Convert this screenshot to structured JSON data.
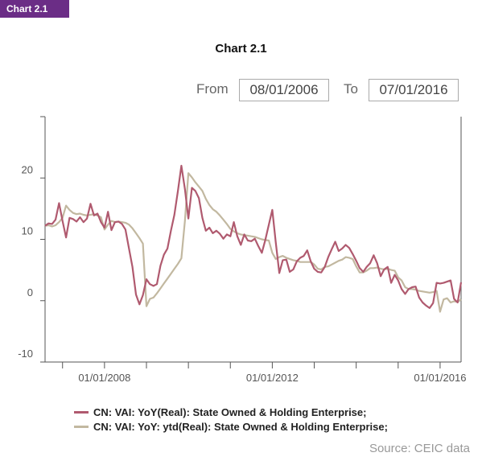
{
  "badge": "Chart 2.1",
  "range": {
    "from_label": "From",
    "from_value": "08/01/2006",
    "to_label": "To",
    "to_value": "07/01/2016"
  },
  "source": "Source: CEIC data",
  "chart_data": {
    "type": "line",
    "title": "Chart 2.1",
    "xlabel": "",
    "ylabel": "",
    "xlim": [
      "2006-08",
      "2016-07"
    ],
    "ylim": [
      -10,
      30
    ],
    "yticks": [
      -10,
      0,
      10,
      20
    ],
    "xticks": [
      "01/01/2008",
      "01/01/2012",
      "01/01/2016"
    ],
    "legend_position": "bottom",
    "grid": false,
    "series": [
      {
        "name": "CN: VAI: YoY(Real): State Owned & Holding Enterprise;",
        "color": "#b05a6f",
        "points": [
          [
            "2006-08",
            12.2
          ],
          [
            "2006-09",
            12.6
          ],
          [
            "2006-10",
            12.5
          ],
          [
            "2006-11",
            13.2
          ],
          [
            "2006-12",
            15.9
          ],
          [
            "2007-01",
            13.0
          ],
          [
            "2007-02",
            10.3
          ],
          [
            "2007-03",
            13.5
          ],
          [
            "2007-04",
            13.3
          ],
          [
            "2007-05",
            12.9
          ],
          [
            "2007-06",
            13.6
          ],
          [
            "2007-07",
            12.8
          ],
          [
            "2007-08",
            13.4
          ],
          [
            "2007-09",
            15.8
          ],
          [
            "2007-10",
            13.9
          ],
          [
            "2007-11",
            14.2
          ],
          [
            "2007-12",
            12.8
          ],
          [
            "2008-01",
            11.9
          ],
          [
            "2008-02",
            14.5
          ],
          [
            "2008-03",
            11.5
          ],
          [
            "2008-04",
            12.8
          ],
          [
            "2008-05",
            12.9
          ],
          [
            "2008-06",
            12.5
          ],
          [
            "2008-07",
            11.6
          ],
          [
            "2008-08",
            8.5
          ],
          [
            "2008-09",
            5.5
          ],
          [
            "2008-10",
            1.0
          ],
          [
            "2008-11",
            -0.6
          ],
          [
            "2008-12",
            0.9
          ],
          [
            "2009-01",
            3.5
          ],
          [
            "2009-02",
            2.7
          ],
          [
            "2009-03",
            2.4
          ],
          [
            "2009-04",
            2.7
          ],
          [
            "2009-05",
            5.7
          ],
          [
            "2009-06",
            7.5
          ],
          [
            "2009-07",
            8.5
          ],
          [
            "2009-08",
            11.4
          ],
          [
            "2009-09",
            14.0
          ],
          [
            "2009-10",
            17.9
          ],
          [
            "2009-11",
            22.0
          ],
          [
            "2009-12",
            18.2
          ],
          [
            "2010-01",
            13.4
          ],
          [
            "2010-02",
            18.4
          ],
          [
            "2010-03",
            17.9
          ],
          [
            "2010-04",
            16.7
          ],
          [
            "2010-05",
            13.5
          ],
          [
            "2010-06",
            11.4
          ],
          [
            "2010-07",
            11.9
          ],
          [
            "2010-08",
            11.0
          ],
          [
            "2010-09",
            11.4
          ],
          [
            "2010-10",
            10.9
          ],
          [
            "2010-11",
            10.1
          ],
          [
            "2010-12",
            10.8
          ],
          [
            "2011-01",
            10.5
          ],
          [
            "2011-02",
            12.8
          ],
          [
            "2011-03",
            10.5
          ],
          [
            "2011-04",
            9.1
          ],
          [
            "2011-05",
            10.8
          ],
          [
            "2011-06",
            9.8
          ],
          [
            "2011-07",
            9.7
          ],
          [
            "2011-08",
            10.1
          ],
          [
            "2011-09",
            8.9
          ],
          [
            "2011-10",
            7.8
          ],
          [
            "2011-11",
            9.9
          ],
          [
            "2011-12",
            12.4
          ],
          [
            "2012-01",
            14.8
          ],
          [
            "2012-02",
            9.5
          ],
          [
            "2012-03",
            4.5
          ],
          [
            "2012-04",
            6.6
          ],
          [
            "2012-05",
            6.7
          ],
          [
            "2012-06",
            4.7
          ],
          [
            "2012-07",
            5.1
          ],
          [
            "2012-08",
            6.4
          ],
          [
            "2012-09",
            7.0
          ],
          [
            "2012-10",
            7.3
          ],
          [
            "2012-11",
            8.2
          ],
          [
            "2012-12",
            6.4
          ],
          [
            "2013-01",
            5.2
          ],
          [
            "2013-02",
            4.7
          ],
          [
            "2013-03",
            4.6
          ],
          [
            "2013-04",
            5.5
          ],
          [
            "2013-05",
            7.1
          ],
          [
            "2013-06",
            8.4
          ],
          [
            "2013-07",
            9.6
          ],
          [
            "2013-08",
            8.1
          ],
          [
            "2013-09",
            8.5
          ],
          [
            "2013-10",
            9.1
          ],
          [
            "2013-11",
            8.6
          ],
          [
            "2013-12",
            7.6
          ],
          [
            "2014-01",
            6.5
          ],
          [
            "2014-02",
            5.3
          ],
          [
            "2014-03",
            4.7
          ],
          [
            "2014-04",
            5.5
          ],
          [
            "2014-05",
            6.1
          ],
          [
            "2014-06",
            7.4
          ],
          [
            "2014-07",
            6.1
          ],
          [
            "2014-08",
            4.0
          ],
          [
            "2014-09",
            5.1
          ],
          [
            "2014-10",
            5.5
          ],
          [
            "2014-11",
            2.9
          ],
          [
            "2014-12",
            4.2
          ],
          [
            "2015-01",
            3.3
          ],
          [
            "2015-02",
            1.9
          ],
          [
            "2015-03",
            1.1
          ],
          [
            "2015-04",
            1.9
          ],
          [
            "2015-05",
            2.2
          ],
          [
            "2015-06",
            2.3
          ],
          [
            "2015-07",
            0.5
          ],
          [
            "2015-08",
            -0.3
          ],
          [
            "2015-09",
            -0.8
          ],
          [
            "2015-10",
            -1.2
          ],
          [
            "2015-11",
            -0.4
          ],
          [
            "2015-12",
            2.9
          ],
          [
            "2016-01",
            2.8
          ],
          [
            "2016-02",
            2.9
          ],
          [
            "2016-03",
            3.1
          ],
          [
            "2016-04",
            3.3
          ],
          [
            "2016-05",
            0.3
          ],
          [
            "2016-06",
            -0.3
          ],
          [
            "2016-07",
            3.0
          ]
        ]
      },
      {
        "name": "CN: VAI: YoY: ytd(Real): State Owned & Holding Enterprise;",
        "color": "#c2b8a0",
        "points": [
          [
            "2006-08",
            12.2
          ],
          [
            "2006-09",
            12.3
          ],
          [
            "2006-10",
            12.1
          ],
          [
            "2006-11",
            12.3
          ],
          [
            "2006-12",
            12.8
          ],
          [
            "2007-01",
            13.5
          ],
          [
            "2007-02",
            15.5
          ],
          [
            "2007-03",
            14.8
          ],
          [
            "2007-04",
            14.3
          ],
          [
            "2007-05",
            14.1
          ],
          [
            "2007-06",
            14.2
          ],
          [
            "2007-07",
            14.0
          ],
          [
            "2007-08",
            13.9
          ],
          [
            "2007-09",
            14.0
          ],
          [
            "2007-10",
            14.1
          ],
          [
            "2007-11",
            13.9
          ],
          [
            "2007-12",
            13.6
          ],
          [
            "2008-01",
            11.6
          ],
          [
            "2008-02",
            12.4
          ],
          [
            "2008-03",
            13.0
          ],
          [
            "2008-04",
            12.8
          ],
          [
            "2008-05",
            12.9
          ],
          [
            "2008-06",
            12.8
          ],
          [
            "2008-07",
            12.7
          ],
          [
            "2008-08",
            12.4
          ],
          [
            "2008-09",
            11.8
          ],
          [
            "2008-10",
            11.0
          ],
          [
            "2008-11",
            10.2
          ],
          [
            "2008-12",
            9.3
          ],
          [
            "2009-01",
            -0.9
          ],
          [
            "2009-02",
            0.3
          ],
          [
            "2009-03",
            0.5
          ],
          [
            "2009-04",
            1.2
          ],
          [
            "2009-05",
            2.0
          ],
          [
            "2009-06",
            2.8
          ],
          [
            "2009-07",
            3.6
          ],
          [
            "2009-08",
            4.4
          ],
          [
            "2009-09",
            5.2
          ],
          [
            "2009-10",
            6.0
          ],
          [
            "2009-11",
            6.9
          ],
          [
            "2009-12",
            13.0
          ],
          [
            "2010-01",
            20.8
          ],
          [
            "2010-02",
            20.1
          ],
          [
            "2010-03",
            19.3
          ],
          [
            "2010-04",
            18.6
          ],
          [
            "2010-05",
            17.9
          ],
          [
            "2010-06",
            16.6
          ],
          [
            "2010-07",
            15.6
          ],
          [
            "2010-08",
            14.9
          ],
          [
            "2010-09",
            14.5
          ],
          [
            "2010-10",
            13.9
          ],
          [
            "2010-11",
            13.2
          ],
          [
            "2010-12",
            12.5
          ],
          [
            "2011-01",
            11.7
          ],
          [
            "2011-02",
            11.3
          ],
          [
            "2011-03",
            11.0
          ],
          [
            "2011-04",
            10.8
          ],
          [
            "2011-05",
            10.7
          ],
          [
            "2011-06",
            10.6
          ],
          [
            "2011-07",
            10.5
          ],
          [
            "2011-08",
            10.4
          ],
          [
            "2011-09",
            10.2
          ],
          [
            "2011-10",
            10.0
          ],
          [
            "2011-11",
            9.9
          ],
          [
            "2011-12",
            9.8
          ],
          [
            "2012-01",
            7.8
          ],
          [
            "2012-02",
            6.8
          ],
          [
            "2012-03",
            7.1
          ],
          [
            "2012-04",
            7.3
          ],
          [
            "2012-05",
            7.0
          ],
          [
            "2012-06",
            6.8
          ],
          [
            "2012-07",
            6.6
          ],
          [
            "2012-08",
            6.5
          ],
          [
            "2012-09",
            6.3
          ],
          [
            "2012-10",
            6.3
          ],
          [
            "2012-11",
            6.3
          ],
          [
            "2012-12",
            6.3
          ],
          [
            "2013-01",
            5.9
          ],
          [
            "2013-02",
            5.2
          ],
          [
            "2013-03",
            5.1
          ],
          [
            "2013-04",
            5.5
          ],
          [
            "2013-05",
            5.6
          ],
          [
            "2013-06",
            5.9
          ],
          [
            "2013-07",
            6.2
          ],
          [
            "2013-08",
            6.5
          ],
          [
            "2013-09",
            6.7
          ],
          [
            "2013-10",
            7.1
          ],
          [
            "2013-11",
            7.0
          ],
          [
            "2013-12",
            6.8
          ],
          [
            "2014-01",
            5.6
          ],
          [
            "2014-02",
            4.6
          ],
          [
            "2014-03",
            4.6
          ],
          [
            "2014-04",
            4.9
          ],
          [
            "2014-05",
            5.3
          ],
          [
            "2014-06",
            5.3
          ],
          [
            "2014-07",
            5.4
          ],
          [
            "2014-08",
            5.2
          ],
          [
            "2014-09",
            5.1
          ],
          [
            "2014-10",
            5.2
          ],
          [
            "2014-11",
            5.0
          ],
          [
            "2014-12",
            4.9
          ],
          [
            "2015-01",
            3.8
          ],
          [
            "2015-02",
            3.3
          ],
          [
            "2015-03",
            2.2
          ],
          [
            "2015-04",
            1.9
          ],
          [
            "2015-05",
            1.9
          ],
          [
            "2015-06",
            1.8
          ],
          [
            "2015-07",
            1.6
          ],
          [
            "2015-08",
            1.5
          ],
          [
            "2015-09",
            1.4
          ],
          [
            "2015-10",
            1.3
          ],
          [
            "2015-11",
            1.4
          ],
          [
            "2015-12",
            1.6
          ],
          [
            "2016-01",
            -1.8
          ],
          [
            "2016-02",
            0.2
          ],
          [
            "2016-03",
            0.4
          ],
          [
            "2016-04",
            -0.3
          ],
          [
            "2016-05",
            -0.1
          ],
          [
            "2016-06",
            -0.2
          ],
          [
            "2016-07",
            0.2
          ]
        ]
      }
    ]
  }
}
